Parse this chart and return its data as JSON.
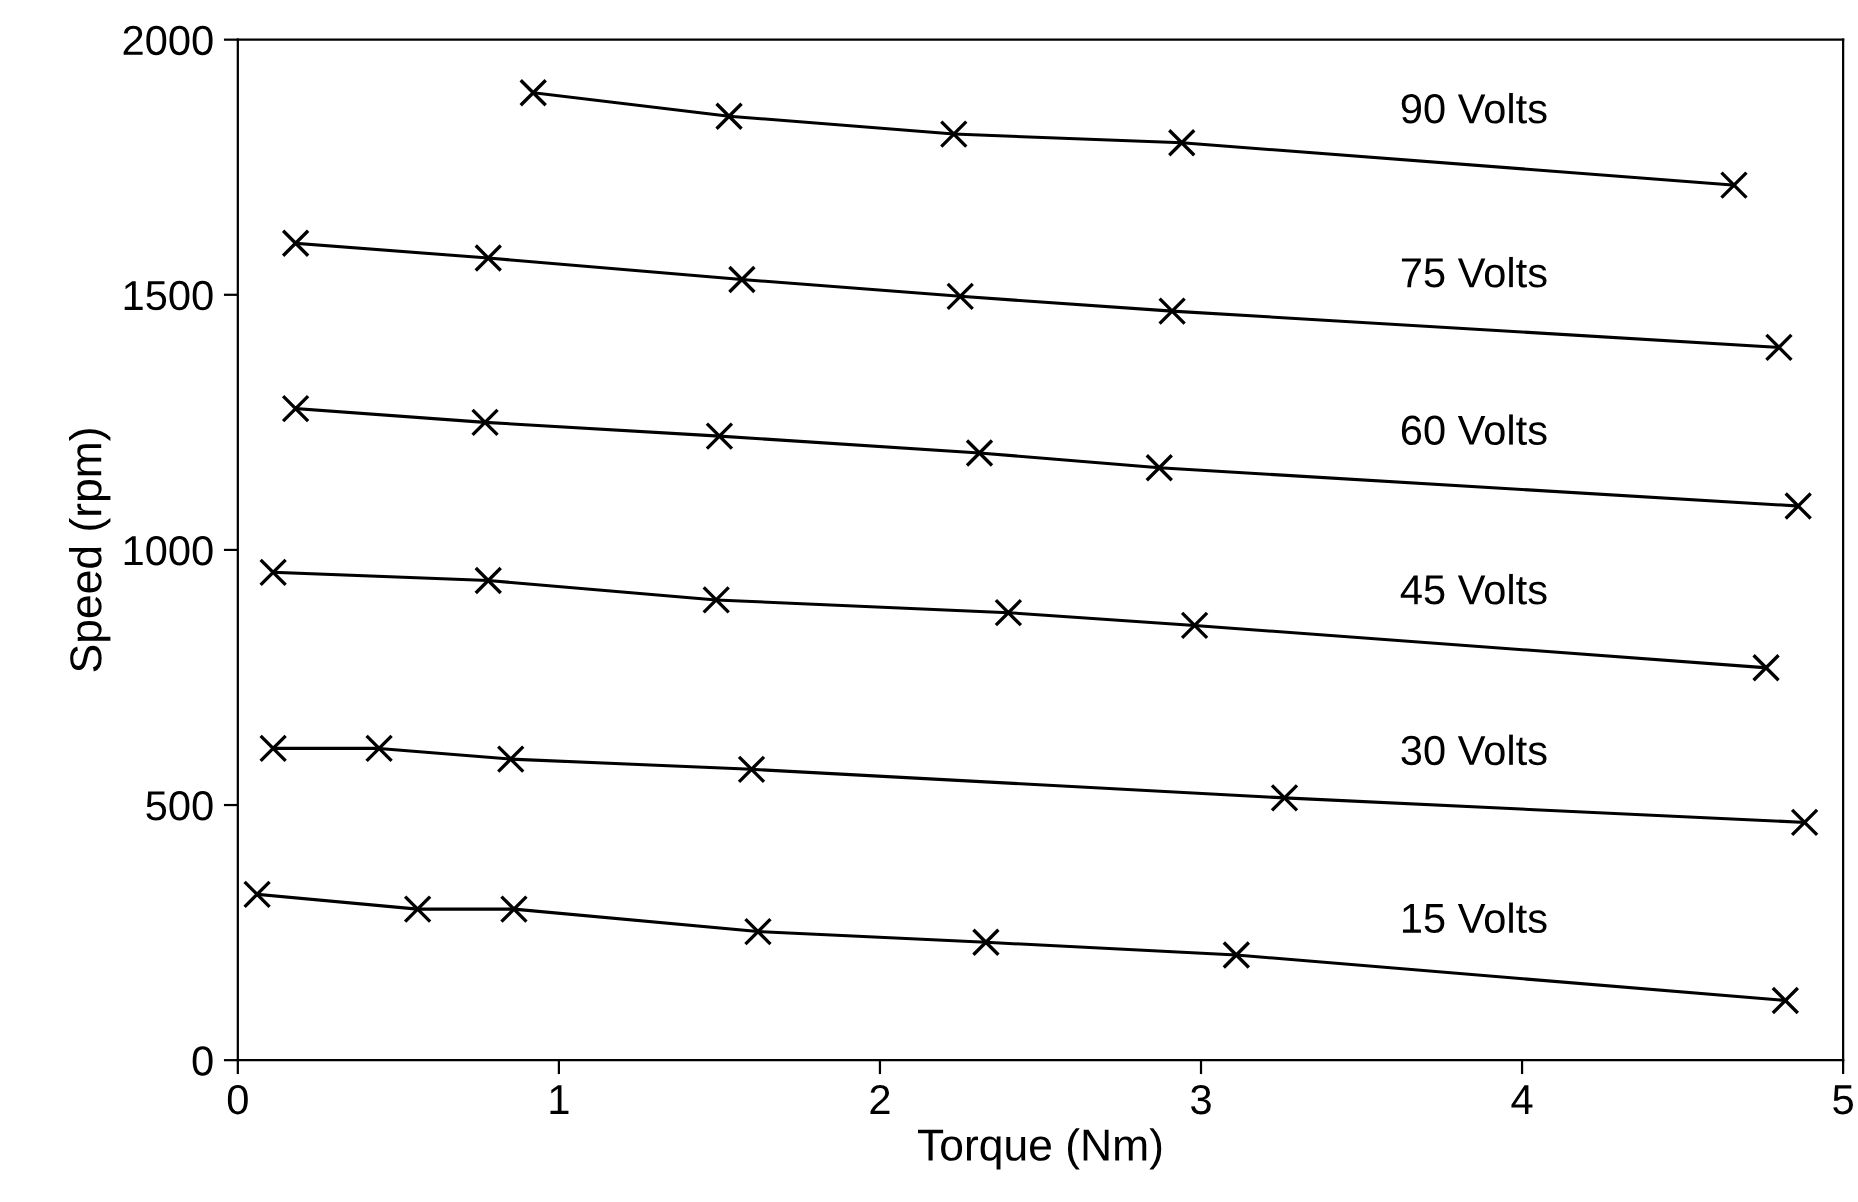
{
  "chart_data": {
    "type": "line",
    "xlabel": "Torque (Nm)",
    "ylabel": "Speed (rpm)",
    "xlim": [
      0,
      5
    ],
    "ylim": [
      0,
      2000
    ],
    "xticks": [
      0,
      1,
      2,
      3,
      4,
      5
    ],
    "yticks": [
      0,
      500,
      1000,
      1500,
      2000
    ],
    "grid": false,
    "marker": "cross",
    "line_style": "solid",
    "series": [
      {
        "name": "90 Volts",
        "color": "#000000",
        "x": [
          0.92,
          1.53,
          2.23,
          2.94,
          4.66
        ],
        "values": [
          1896,
          1850,
          1815,
          1798,
          1715
        ]
      },
      {
        "name": "75 Volts",
        "color": "#000000",
        "x": [
          0.18,
          0.78,
          1.57,
          2.25,
          2.91,
          4.8
        ],
        "values": [
          1601,
          1572,
          1530,
          1497,
          1468,
          1397
        ]
      },
      {
        "name": "60 Volts",
        "color": "#000000",
        "x": [
          0.18,
          0.77,
          1.5,
          2.31,
          2.87,
          4.86
        ],
        "values": [
          1277,
          1250,
          1223,
          1190,
          1161,
          1086
        ]
      },
      {
        "name": "45 Volts",
        "color": "#000000",
        "x": [
          0.11,
          0.78,
          1.49,
          2.4,
          2.98,
          4.76
        ],
        "values": [
          956,
          940,
          902,
          877,
          852,
          769
        ]
      },
      {
        "name": "30 Volts",
        "color": "#000000",
        "x": [
          0.11,
          0.44,
          0.85,
          1.6,
          3.26,
          4.88
        ],
        "values": [
          611,
          611,
          590,
          570,
          514,
          466
        ]
      },
      {
        "name": "15 Volts",
        "color": "#000000",
        "x": [
          0.06,
          0.56,
          0.86,
          1.62,
          2.33,
          3.11,
          4.82
        ],
        "values": [
          325,
          296,
          296,
          252,
          231,
          206,
          117
        ]
      }
    ]
  }
}
